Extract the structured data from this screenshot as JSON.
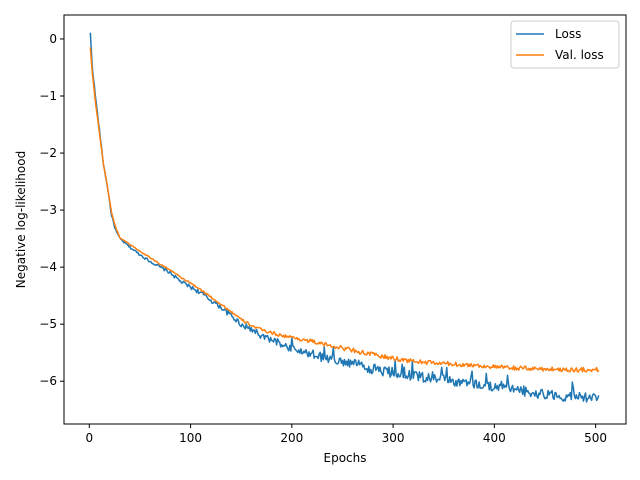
{
  "chart_data": {
    "type": "line",
    "title": "",
    "xlabel": "Epochs",
    "ylabel": "Negative log-likelihood",
    "xlim": [
      -25,
      530
    ],
    "ylim": [
      -6.75,
      0.42
    ],
    "xticks": [
      0,
      100,
      200,
      300,
      400,
      500
    ],
    "xtick_labels": [
      "0",
      "100",
      "200",
      "300",
      "400",
      "500"
    ],
    "yticks": [
      0,
      -1,
      -2,
      -3,
      -4,
      -5,
      -6
    ],
    "ytick_labels": [
      "0",
      "−1",
      "−2",
      "−3",
      "−4",
      "−5",
      "−6"
    ],
    "grid": false,
    "legend_position": "top-right",
    "series": [
      {
        "name": "Loss",
        "color": "#1f77b4",
        "noise": 0.07,
        "x": [
          1,
          3,
          6,
          10,
          14,
          18,
          22,
          26,
          30,
          40,
          50,
          60,
          70,
          80,
          90,
          100,
          110,
          120,
          130,
          140,
          150,
          160,
          170,
          180,
          190,
          200,
          210,
          220,
          230,
          240,
          250,
          260,
          270,
          280,
          290,
          300,
          320,
          340,
          360,
          380,
          400,
          420,
          440,
          460,
          480,
          500,
          503
        ],
        "y": [
          0.1,
          -0.5,
          -1.0,
          -1.6,
          -2.2,
          -2.6,
          -3.1,
          -3.35,
          -3.5,
          -3.65,
          -3.78,
          -3.9,
          -4.0,
          -4.1,
          -4.25,
          -4.35,
          -4.45,
          -4.58,
          -4.7,
          -4.85,
          -5.0,
          -5.1,
          -5.2,
          -5.28,
          -5.35,
          -5.42,
          -5.48,
          -5.52,
          -5.58,
          -5.63,
          -5.67,
          -5.7,
          -5.74,
          -5.78,
          -5.82,
          -5.85,
          -5.9,
          -5.95,
          -6.0,
          -6.05,
          -6.1,
          -6.15,
          -6.2,
          -6.25,
          -6.28,
          -6.3,
          -6.32
        ]
      },
      {
        "name": "Val. loss",
        "color": "#ff7f0e",
        "noise": 0.03,
        "x": [
          1,
          3,
          6,
          10,
          14,
          18,
          22,
          26,
          30,
          40,
          50,
          60,
          70,
          80,
          90,
          100,
          110,
          120,
          130,
          140,
          150,
          160,
          170,
          180,
          190,
          200,
          210,
          220,
          230,
          240,
          250,
          260,
          270,
          280,
          290,
          300,
          320,
          340,
          360,
          380,
          400,
          420,
          440,
          460,
          480,
          500,
          503
        ],
        "y": [
          -0.15,
          -0.6,
          -1.1,
          -1.65,
          -2.2,
          -2.6,
          -3.05,
          -3.3,
          -3.48,
          -3.6,
          -3.72,
          -3.83,
          -3.95,
          -4.05,
          -4.18,
          -4.28,
          -4.4,
          -4.52,
          -4.65,
          -4.78,
          -4.92,
          -5.02,
          -5.1,
          -5.15,
          -5.2,
          -5.23,
          -5.27,
          -5.3,
          -5.35,
          -5.38,
          -5.42,
          -5.45,
          -5.5,
          -5.53,
          -5.57,
          -5.6,
          -5.65,
          -5.68,
          -5.7,
          -5.72,
          -5.75,
          -5.77,
          -5.78,
          -5.79,
          -5.8,
          -5.8,
          -5.8
        ]
      }
    ]
  }
}
